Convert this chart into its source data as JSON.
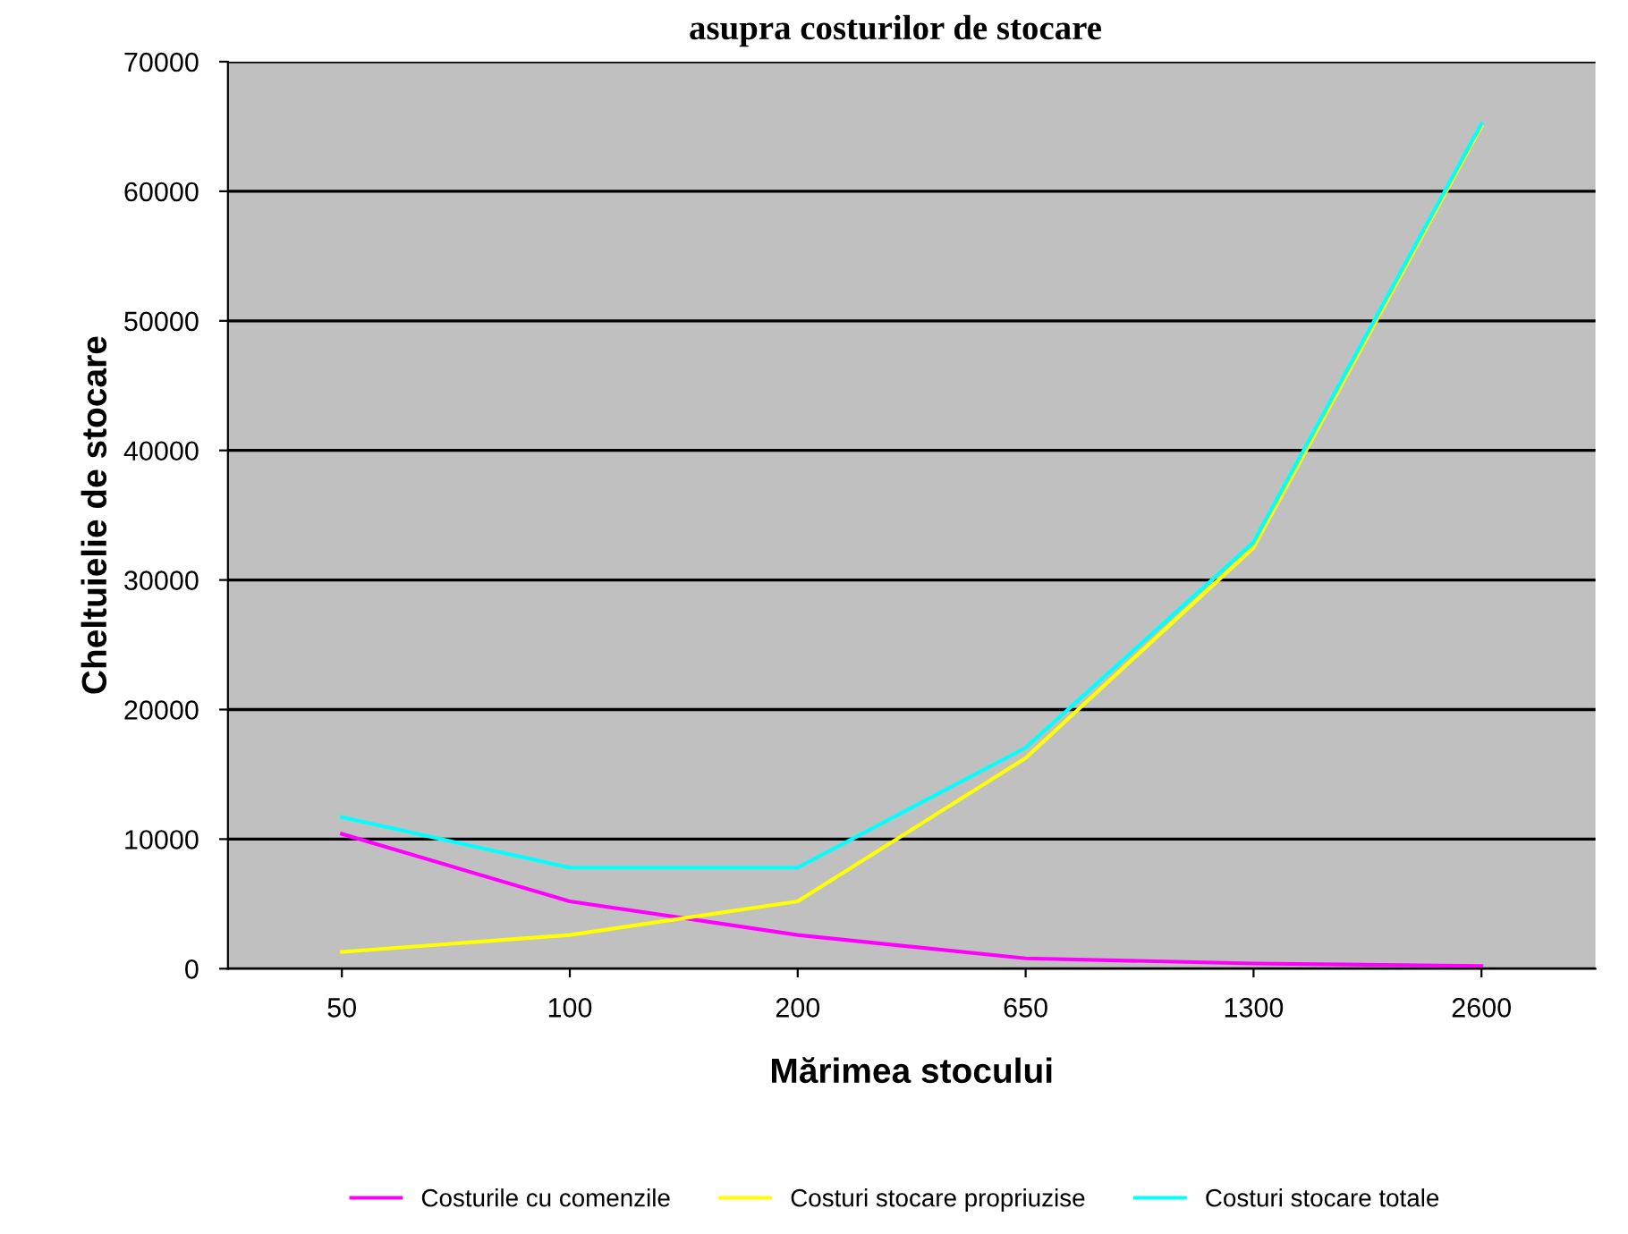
{
  "chart_data": {
    "type": "line",
    "title": "asupra costurilor de stocare",
    "xlabel": "Mărimea stocului",
    "ylabel": "Cheltuielie de stocare",
    "categories": [
      "50",
      "100",
      "200",
      "650",
      "1300",
      "2600"
    ],
    "series": [
      {
        "name": "Costurile cu comenzile",
        "color": "#ff00ff",
        "values": [
          10400,
          5200,
          2600,
          800,
          400,
          200
        ]
      },
      {
        "name": "Costuri stocare propriuzise",
        "color": "#ffff00",
        "values": [
          1300,
          2600,
          5200,
          16250,
          32500,
          65000
        ]
      },
      {
        "name": "Costuri stocare totale",
        "color": "#00ffff",
        "values": [
          11700,
          7800,
          7800,
          17050,
          32900,
          65200
        ]
      }
    ],
    "ylim": [
      0,
      70000
    ],
    "yticks": [
      0,
      10000,
      20000,
      30000,
      40000,
      50000,
      60000,
      70000
    ],
    "grid": "y",
    "legend": "bottom",
    "marker": "none",
    "line_style": "solid"
  }
}
